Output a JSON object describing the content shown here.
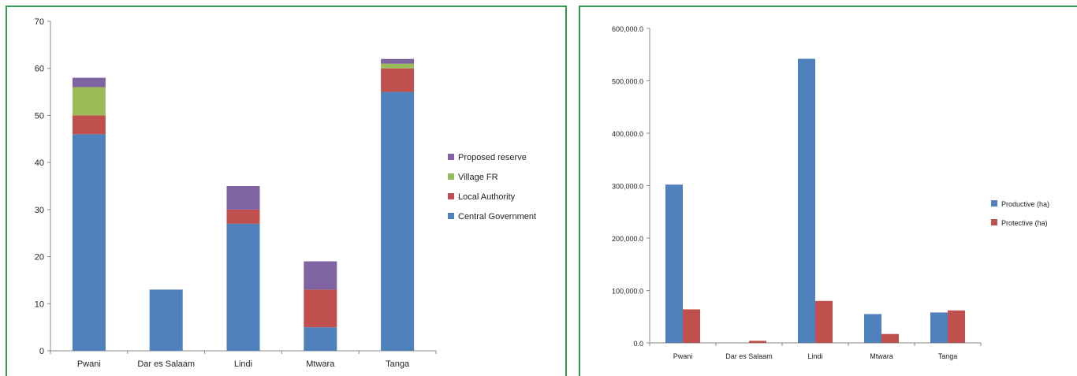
{
  "colors": {
    "frame": "#2e9a4f",
    "blue": "#4f81bd",
    "red": "#c0504d",
    "green": "#9bbb59",
    "purple": "#8064a2"
  },
  "chart_data": [
    {
      "type": "bar",
      "stacked": true,
      "categories": [
        "Pwani",
        "Dar es Salaam",
        "Lindi",
        "Mtwara",
        "Tanga"
      ],
      "ylim": [
        0,
        70
      ],
      "yticks": [
        0,
        10,
        20,
        30,
        40,
        50,
        60,
        70
      ],
      "ytick_labels": [
        "0",
        "10",
        "20",
        "30",
        "40",
        "50",
        "60",
        "70"
      ],
      "series": [
        {
          "name": "Central Government",
          "color": "#4f81bd",
          "values": [
            46,
            13,
            27,
            5,
            55
          ]
        },
        {
          "name": "Local Authority",
          "color": "#c0504d",
          "values": [
            4,
            0,
            3,
            8,
            5
          ]
        },
        {
          "name": "Village FR",
          "color": "#9bbb59",
          "values": [
            6,
            0,
            0,
            0,
            1
          ]
        },
        {
          "name": "Proposed reserve",
          "color": "#8064a2",
          "values": [
            2,
            0,
            5,
            6,
            1
          ]
        }
      ],
      "legend_order": [
        "Proposed reserve",
        "Village FR",
        "Local Authority",
        "Central Government"
      ],
      "legend_position": "right",
      "grid": false
    },
    {
      "type": "bar",
      "stacked": false,
      "categories": [
        "Pwani",
        "Dar es Salaam",
        "Lindi",
        "Mtwara",
        "Tanga"
      ],
      "ylim": [
        0,
        600000
      ],
      "yticks": [
        0,
        100000,
        200000,
        300000,
        400000,
        500000,
        600000
      ],
      "ytick_labels": [
        "0.0",
        "100,000.0",
        "200,000.0",
        "300,000.0",
        "400,000.0",
        "500,000.0",
        "600,000.0"
      ],
      "series": [
        {
          "name": "Productive (ha)",
          "color": "#4f81bd",
          "values": [
            302000,
            0,
            542000,
            55000,
            58000
          ]
        },
        {
          "name": "Protective (ha)",
          "color": "#c0504d",
          "values": [
            64000,
            4000,
            80000,
            17000,
            62000
          ]
        }
      ],
      "legend_order": [
        "Productive (ha)",
        "Protective (ha)"
      ],
      "legend_position": "right",
      "grid": false
    }
  ]
}
